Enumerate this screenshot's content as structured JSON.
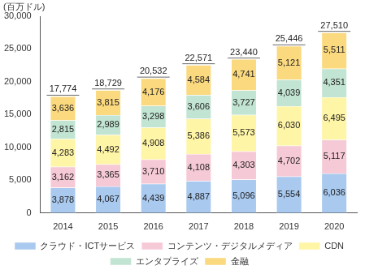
{
  "chart_data": {
    "type": "bar",
    "ylabel": "(百万ドル)",
    "categories": [
      "2014",
      "2015",
      "2016",
      "2017",
      "2018",
      "2019",
      "2020"
    ],
    "series": [
      {
        "name": "クラウド・ICTサービス",
        "color": "#a9c9ef",
        "values": [
          3878,
          4067,
          4439,
          4887,
          5096,
          5554,
          6036
        ],
        "value_labels": [
          "3,878",
          "4,067",
          "4,439",
          "4,887",
          "5,096",
          "5,554",
          "6,036"
        ]
      },
      {
        "name": "コンテンツ・デジタルメディア",
        "color": "#f6c9d6",
        "values": [
          3162,
          3365,
          3710,
          4108,
          4303,
          4702,
          5117
        ],
        "value_labels": [
          "3,162",
          "3,365",
          "3,710",
          "4,108",
          "4,303",
          "4,702",
          "5,117"
        ]
      },
      {
        "name": "CDN",
        "color": "#fff5a6",
        "values": [
          4283,
          4492,
          4908,
          5386,
          5573,
          6030,
          6495
        ],
        "value_labels": [
          "4,283",
          "4,492",
          "4,908",
          "5,386",
          "5,573",
          "6,030",
          "6,495"
        ]
      },
      {
        "name": "エンタプライズ",
        "color": "#c2e4d2",
        "values": [
          2815,
          2989,
          3298,
          3606,
          3727,
          4039,
          4351
        ],
        "value_labels": [
          "2,815",
          "2,989",
          "3,298",
          "3,606",
          "3,727",
          "4,039",
          "4,351"
        ]
      },
      {
        "name": "金融",
        "color": "#fbd97e",
        "values": [
          3636,
          3815,
          4176,
          4584,
          4741,
          5121,
          5511
        ],
        "value_labels": [
          "3,636",
          "3,815",
          "4,176",
          "4,584",
          "4,741",
          "5,121",
          "5,511"
        ]
      }
    ],
    "totals": [
      17774,
      18729,
      20532,
      22571,
      23440,
      25446,
      27510
    ],
    "total_labels": [
      "17,774",
      "18,729",
      "20,532",
      "22,571",
      "23,440",
      "25,446",
      "27,510"
    ],
    "ylim": [
      0,
      30000
    ],
    "yticks": [
      0,
      {
        "value": 5000,
        "label": "5,000"
      },
      {
        "value": 10000,
        "label": "10,000"
      },
      {
        "value": 15000,
        "label": "15,000"
      },
      {
        "value": 20000,
        "label": "20,000"
      },
      {
        "value": 25000,
        "label": "25,000"
      },
      {
        "value": 30000,
        "label": "30,000"
      }
    ],
    "grid": false,
    "stacked": true,
    "data_labels": true,
    "legend": "bottom"
  }
}
